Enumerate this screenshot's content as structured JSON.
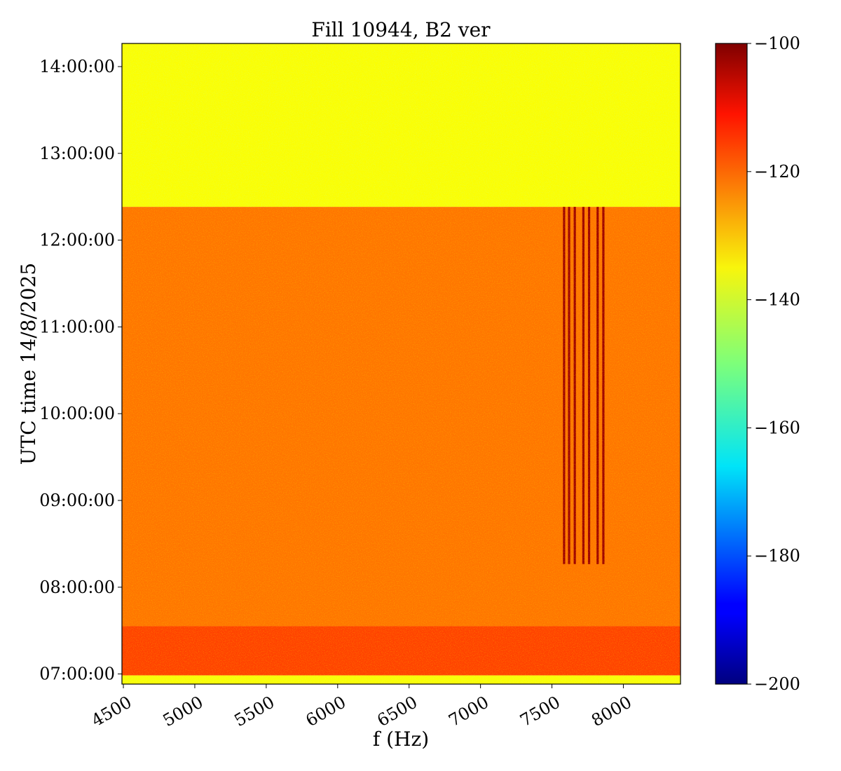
{
  "chart_data": {
    "type": "heatmap",
    "title": "Fill 10944, B2 ver",
    "xlabel": "f (Hz)",
    "ylabel": "UTC time 14/8/2025",
    "xlim": [
      4490,
      8400
    ],
    "x_ticks": [
      4500,
      5000,
      5500,
      6000,
      6500,
      7000,
      7500,
      8000
    ],
    "x_tick_labels": [
      "4500",
      "5000",
      "5500",
      "6000",
      "6500",
      "7000",
      "7500",
      "8000"
    ],
    "y_ticks": [
      "07:00:00",
      "08:00:00",
      "09:00:00",
      "10:00:00",
      "11:00:00",
      "12:00:00",
      "13:00:00",
      "14:00:00"
    ],
    "ylim": [
      "06:53:00",
      "14:16:00"
    ],
    "colorbar": {
      "colormap": "jet",
      "range": [
        -200,
        -100
      ],
      "ticks": [
        -100,
        -120,
        -140,
        -160,
        -180,
        -200
      ],
      "tick_labels": [
        "−100",
        "−120",
        "−140",
        "−160",
        "−180",
        "−200"
      ]
    },
    "regions": [
      {
        "time_from": "12:23:00",
        "time_to": "14:16:00",
        "level": -138
      },
      {
        "time_from": "07:33:00",
        "time_to": "12:23:00",
        "level": -124
      },
      {
        "time_from": "06:59:00",
        "time_to": "07:33:00",
        "level": -119
      },
      {
        "time_from": "06:53:00",
        "time_to": "06:59:00",
        "level": -138
      }
    ],
    "lines": [
      {
        "freq": 7585,
        "time_from": "08:16:00",
        "time_to": "12:23:00",
        "level": -103
      },
      {
        "freq": 7620,
        "time_from": "08:16:00",
        "time_to": "12:23:00",
        "level": -103
      },
      {
        "freq": 7660,
        "time_from": "08:16:00",
        "time_to": "12:23:00",
        "level": -103
      },
      {
        "freq": 7720,
        "time_from": "08:16:00",
        "time_to": "12:23:00",
        "level": -103
      },
      {
        "freq": 7760,
        "time_from": "08:16:00",
        "time_to": "12:23:00",
        "level": -103
      },
      {
        "freq": 7820,
        "time_from": "08:16:00",
        "time_to": "12:23:00",
        "level": -103
      },
      {
        "freq": 7860,
        "time_from": "08:16:00",
        "time_to": "12:23:00",
        "level": -103
      }
    ]
  }
}
